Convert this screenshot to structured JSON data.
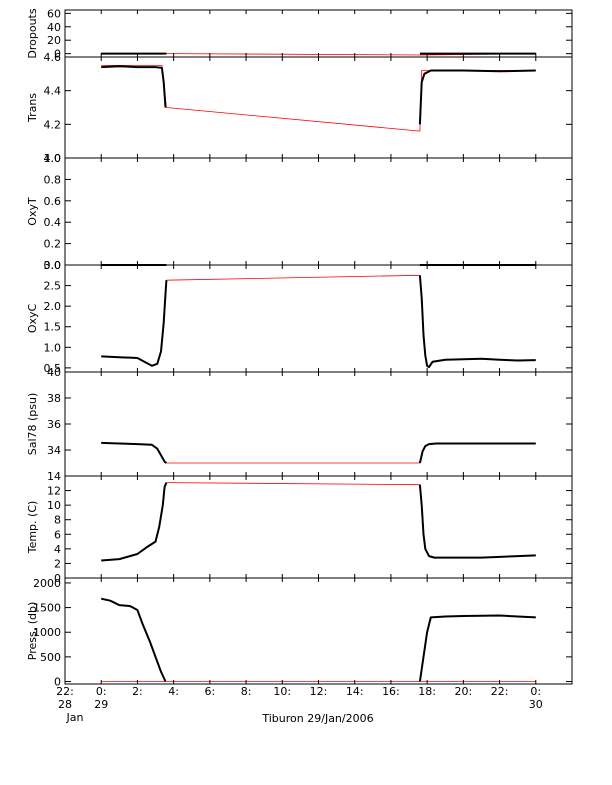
{
  "figure": {
    "xlabel": "Tiburon 29/Jan/2006",
    "colors": {
      "raw": "#ff0000",
      "processed": "#000000",
      "frame": "#000000",
      "background": "#ffffff"
    },
    "xaxis": {
      "range": [
        22,
        50
      ],
      "ticks": [
        {
          "x": 22,
          "label": "22:",
          "sub": "28",
          "sub2": "Jan"
        },
        {
          "x": 24,
          "label": "0:",
          "sub": "29"
        },
        {
          "x": 26,
          "label": "2:"
        },
        {
          "x": 28,
          "label": "4:"
        },
        {
          "x": 30,
          "label": "6:"
        },
        {
          "x": 32,
          "label": "8:"
        },
        {
          "x": 34,
          "label": "10:"
        },
        {
          "x": 36,
          "label": "12:"
        },
        {
          "x": 38,
          "label": "14:"
        },
        {
          "x": 40,
          "label": "16:"
        },
        {
          "x": 42,
          "label": "18:"
        },
        {
          "x": 44,
          "label": "20:"
        },
        {
          "x": 46,
          "label": "22:"
        },
        {
          "x": 48,
          "label": "0:",
          "sub": "30"
        }
      ]
    }
  },
  "chart_data": [
    {
      "type": "line",
      "ylabel": "Dropouts",
      "ylim": [
        -5,
        65
      ],
      "yticks": [
        0,
        20,
        40,
        60
      ],
      "series": [
        {
          "color": "raw",
          "x": [
            24,
            27.6,
            41.7,
            48
          ],
          "y": [
            0,
            0,
            -2,
            0
          ]
        },
        {
          "color": "processed",
          "x": [
            24,
            27.6
          ],
          "y": [
            0,
            0
          ]
        },
        {
          "color": "processed",
          "x": [
            41.6,
            48
          ],
          "y": [
            0,
            0
          ]
        }
      ]
    },
    {
      "type": "line",
      "ylabel": "Trans",
      "ylim": [
        4.0,
        4.6
      ],
      "yticks": [
        4.0,
        4.2,
        4.4,
        4.6
      ],
      "series": [
        {
          "color": "raw",
          "x": [
            24,
            27.35,
            27.6,
            41.6,
            41.7,
            48
          ],
          "y": [
            4.55,
            4.55,
            4.3,
            4.16,
            4.52,
            4.52
          ]
        },
        {
          "color": "processed",
          "x": [
            24,
            25,
            26,
            27,
            27.35,
            27.45,
            27.55
          ],
          "y": [
            4.54,
            4.545,
            4.54,
            4.54,
            4.535,
            4.45,
            4.3
          ]
        },
        {
          "color": "processed",
          "x": [
            41.6,
            41.7,
            41.85,
            42.2,
            44,
            46,
            48
          ],
          "y": [
            4.2,
            4.45,
            4.5,
            4.52,
            4.52,
            4.515,
            4.52
          ]
        }
      ]
    },
    {
      "type": "line",
      "ylabel": "OxyT",
      "ylim": [
        0.0,
        1.0
      ],
      "yticks": [
        0.0,
        0.2,
        0.4,
        0.6,
        0.8,
        1.0
      ],
      "series": [
        {
          "color": "raw",
          "x": [
            24,
            48
          ],
          "y": [
            0,
            0
          ]
        },
        {
          "color": "processed",
          "x": [
            24,
            27.6
          ],
          "y": [
            0,
            0
          ]
        },
        {
          "color": "processed",
          "x": [
            41.6,
            48
          ],
          "y": [
            0,
            0
          ]
        }
      ]
    },
    {
      "type": "line",
      "ylabel": "OxyC",
      "ylim": [
        0.4,
        3.0
      ],
      "yticks": [
        0.5,
        1.0,
        1.5,
        2.0,
        2.5,
        3.0
      ],
      "series": [
        {
          "color": "raw",
          "x": [
            27.6,
            41.6
          ],
          "y": [
            2.63,
            2.75
          ]
        },
        {
          "color": "processed",
          "x": [
            24,
            25,
            26,
            26.5,
            26.8,
            27.1,
            27.3,
            27.45,
            27.55,
            27.6
          ],
          "y": [
            0.78,
            0.76,
            0.74,
            0.62,
            0.55,
            0.6,
            0.9,
            1.6,
            2.3,
            2.63
          ]
        },
        {
          "color": "processed",
          "x": [
            41.6,
            41.7,
            41.8,
            41.9,
            42.0,
            42.1,
            42.3,
            43,
            45,
            46,
            47,
            48
          ],
          "y": [
            2.75,
            2.2,
            1.3,
            0.8,
            0.55,
            0.52,
            0.65,
            0.7,
            0.72,
            0.7,
            0.68,
            0.69
          ]
        }
      ]
    },
    {
      "type": "line",
      "ylabel": "Sal78 (psu)",
      "ylim": [
        32,
        40
      ],
      "yticks": [
        34,
        36,
        38,
        40
      ],
      "series": [
        {
          "color": "raw",
          "x": [
            27.6,
            41.6
          ],
          "y": [
            33.0,
            33.0
          ]
        },
        {
          "color": "processed",
          "x": [
            24,
            25,
            26,
            26.8,
            27.1,
            27.3,
            27.5,
            27.6
          ],
          "y": [
            34.55,
            34.5,
            34.45,
            34.4,
            34.1,
            33.6,
            33.1,
            33.0
          ]
        },
        {
          "color": "processed",
          "x": [
            41.6,
            41.75,
            41.9,
            42.1,
            42.5,
            44,
            46,
            48
          ],
          "y": [
            33.0,
            33.9,
            34.3,
            34.45,
            34.5,
            34.5,
            34.5,
            34.5
          ]
        }
      ]
    },
    {
      "type": "line",
      "ylabel": "Temp. (C)",
      "ylim": [
        0,
        14
      ],
      "yticks": [
        0,
        2,
        4,
        6,
        8,
        10,
        12,
        14
      ],
      "series": [
        {
          "color": "raw",
          "x": [
            27.6,
            41.6
          ],
          "y": [
            13.1,
            12.8
          ]
        },
        {
          "color": "processed",
          "x": [
            24,
            25,
            26,
            26.5,
            27.0,
            27.2,
            27.4,
            27.5,
            27.6
          ],
          "y": [
            2.4,
            2.6,
            3.3,
            4.2,
            5.0,
            7.0,
            10.0,
            12.5,
            13.1
          ]
        },
        {
          "color": "processed",
          "x": [
            41.6,
            41.7,
            41.8,
            41.9,
            42.1,
            42.4,
            43,
            45,
            47,
            48
          ],
          "y": [
            12.8,
            10.0,
            6.0,
            4.0,
            3.0,
            2.8,
            2.8,
            2.8,
            3.0,
            3.1
          ]
        }
      ]
    },
    {
      "type": "line",
      "ylabel": "Press. (db)",
      "ylim": [
        -50,
        2100
      ],
      "yticks": [
        0,
        500,
        1000,
        1500,
        2000
      ],
      "series": [
        {
          "color": "raw",
          "x": [
            24,
            48
          ],
          "y": [
            0,
            0
          ]
        },
        {
          "color": "processed",
          "x": [
            24,
            24.5,
            25,
            25.6,
            26.0,
            26.3,
            26.7,
            27.0,
            27.3,
            27.55
          ],
          "y": [
            1680,
            1640,
            1550,
            1530,
            1450,
            1150,
            800,
            500,
            200,
            0
          ]
        },
        {
          "color": "processed",
          "x": [
            41.6,
            41.8,
            42.0,
            42.2,
            43,
            44,
            46,
            47,
            48
          ],
          "y": [
            0,
            500,
            1000,
            1300,
            1320,
            1330,
            1340,
            1320,
            1300
          ]
        }
      ]
    }
  ]
}
